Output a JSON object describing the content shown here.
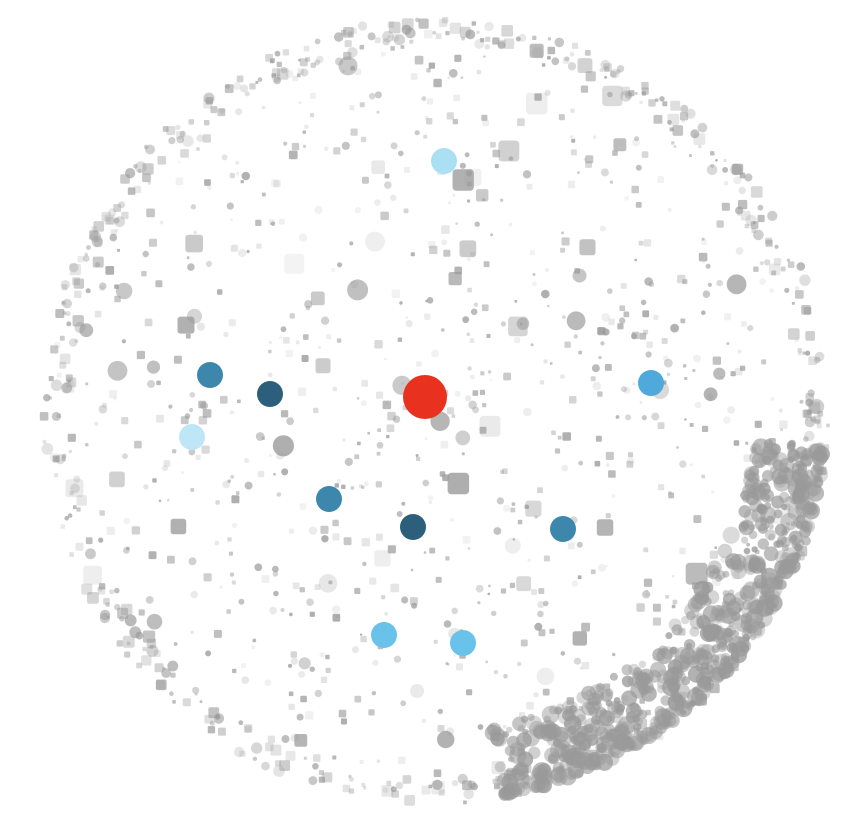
{
  "colors": {
    "background": "#ffffff",
    "focus": "#e8321f",
    "dark_navy": "#2b5f7c",
    "steel_blue": "#3d87ad",
    "medium_blue": "#4fa9db",
    "sky_blue": "#68c2ea",
    "light_blue": "#aadff4",
    "pale_blue": "#bfe6f7",
    "dust": "#9a9a9a"
  },
  "legend": [],
  "nodes": [
    {
      "id": "focus-node",
      "label": "",
      "color_key": "focus",
      "ring": 0,
      "angle": 0
    },
    {
      "id": "node-a",
      "label": "",
      "color_key": "light_blue",
      "ring": 3,
      "angle": 84
    },
    {
      "id": "node-b",
      "label": "",
      "color_key": "steel_blue",
      "ring": 3,
      "angle": 177
    },
    {
      "id": "node-c",
      "label": "",
      "color_key": "dark_navy",
      "ring": 2,
      "angle": 181
    },
    {
      "id": "node-d",
      "label": "",
      "color_key": "pale_blue",
      "ring": 3,
      "angle": 186
    },
    {
      "id": "node-e",
      "label": "",
      "color_key": "medium_blue",
      "ring": 3,
      "angle": 2
    },
    {
      "id": "node-f",
      "label": "",
      "color_key": "steel_blue",
      "ring": 2,
      "angle": 233
    },
    {
      "id": "node-g",
      "label": "",
      "color_key": "dark_navy",
      "ring": 2,
      "angle": 276
    },
    {
      "id": "node-h",
      "label": "",
      "color_key": "steel_blue",
      "ring": 2,
      "angle": 320
    },
    {
      "id": "node-i",
      "label": "",
      "color_key": "sky_blue",
      "ring": 3,
      "angle": 261
    },
    {
      "id": "node-j",
      "label": "",
      "color_key": "sky_blue",
      "ring": 3,
      "angle": 285
    }
  ]
}
